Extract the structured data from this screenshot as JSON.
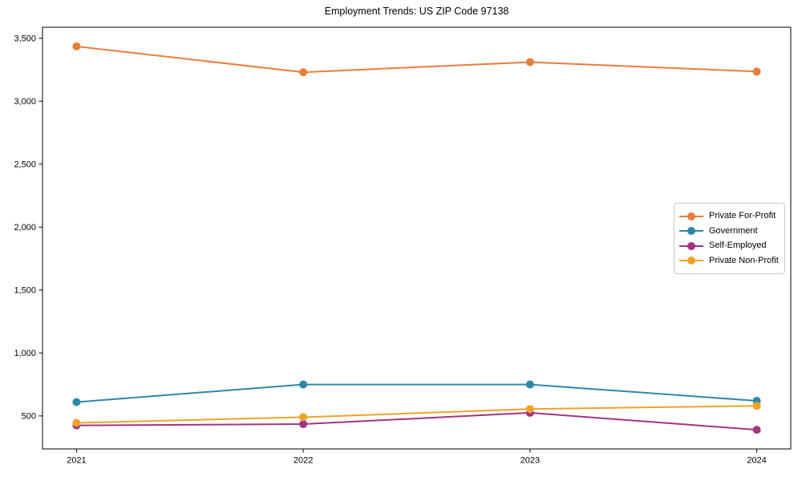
{
  "figure": {
    "background": "#ffffff",
    "axis_color": "#000000",
    "tick_label_color": "#000000",
    "legend_border_color": "#c9c9c9"
  },
  "chart_data": {
    "type": "line",
    "title": "Employment Trends: US ZIP Code 97138",
    "xlabel": "",
    "ylabel": "",
    "grid": false,
    "legend_position": "center right",
    "categories": [
      "2021",
      "2022",
      "2023",
      "2024"
    ],
    "ylim": [
      238,
      3587
    ],
    "yticks": [
      {
        "value": 500,
        "label": "500"
      },
      {
        "value": 1000,
        "label": "1,000"
      },
      {
        "value": 1500,
        "label": "1,500"
      },
      {
        "value": 2000,
        "label": "2,000"
      },
      {
        "value": 2500,
        "label": "2,500"
      },
      {
        "value": 3000,
        "label": "3,000"
      },
      {
        "value": 3500,
        "label": "3,500"
      }
    ],
    "series": [
      {
        "name": "Private For-Profit",
        "color": "#e87d3c",
        "marker": "circle",
        "values": [
          3435,
          3230,
          3310,
          3235
        ]
      },
      {
        "name": "Government",
        "color": "#2f87a8",
        "marker": "circle",
        "values": [
          610,
          750,
          750,
          620
        ]
      },
      {
        "name": "Self-Employed",
        "color": "#a13582",
        "marker": "circle",
        "values": [
          425,
          435,
          525,
          390
        ]
      },
      {
        "name": "Private Non-Profit",
        "color": "#efa229",
        "marker": "circle",
        "values": [
          445,
          490,
          555,
          580
        ]
      }
    ]
  }
}
